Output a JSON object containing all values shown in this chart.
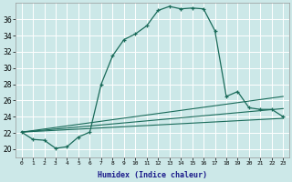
{
  "xlabel": "Humidex (Indice chaleur)",
  "bg_color": "#cce8e8",
  "grid_color": "#ffffff",
  "line_color": "#1a6b5a",
  "xlim": [
    -0.5,
    23.5
  ],
  "ylim": [
    19.0,
    38.0
  ],
  "yticks": [
    20,
    22,
    24,
    26,
    28,
    30,
    32,
    34,
    36
  ],
  "xticks": [
    0,
    1,
    2,
    3,
    4,
    5,
    6,
    7,
    8,
    9,
    10,
    11,
    12,
    13,
    14,
    15,
    16,
    17,
    18,
    19,
    20,
    21,
    22,
    23
  ],
  "curve1_x": [
    0,
    1,
    2,
    3,
    4,
    5,
    6,
    7,
    8,
    9,
    10,
    11,
    12,
    13,
    14,
    15,
    16,
    17,
    18,
    19,
    20,
    21,
    22,
    23
  ],
  "curve1_y": [
    22.1,
    21.2,
    21.1,
    20.1,
    20.3,
    21.5,
    22.1,
    28.0,
    31.5,
    33.5,
    34.2,
    35.2,
    37.1,
    37.6,
    37.3,
    37.4,
    37.3,
    34.6,
    26.5,
    27.1,
    25.1,
    24.9,
    24.9,
    24.0
  ],
  "line2_x": [
    0,
    23
  ],
  "line2_y": [
    22.1,
    26.5
  ],
  "line3_x": [
    0,
    23
  ],
  "line3_y": [
    22.1,
    25.0
  ],
  "line4_x": [
    0,
    23
  ],
  "line4_y": [
    22.1,
    23.8
  ]
}
